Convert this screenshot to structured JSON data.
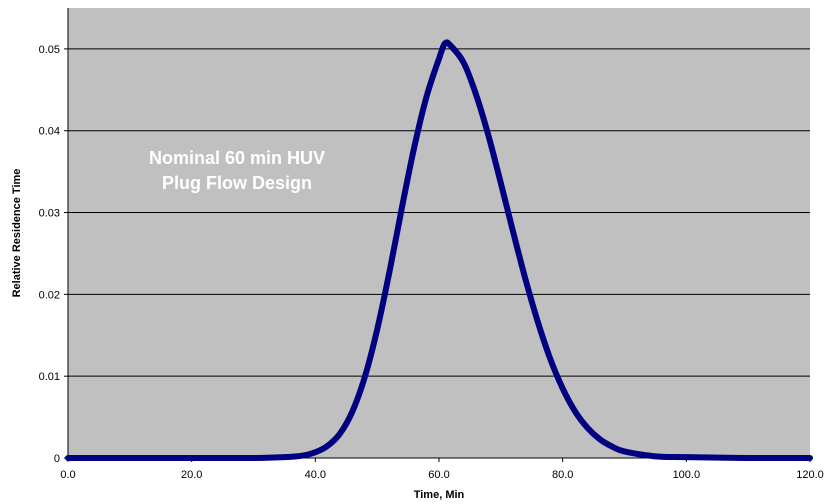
{
  "chart_data": {
    "type": "line",
    "title": "",
    "xlabel": "Time, Min",
    "ylabel": "Relative Residence Time",
    "xlim": [
      0,
      120
    ],
    "ylim": [
      0,
      0.055
    ],
    "xticks": [
      "0.0",
      "20.0",
      "40.0",
      "60.0",
      "80.0",
      "100.0",
      "120.0"
    ],
    "yticks": [
      "0",
      "0.01",
      "0.02",
      "0.03",
      "0.04",
      "0.05"
    ],
    "grid": "horizontal",
    "legend": "none",
    "annotation": [
      "Nominal 60 min HUV",
      "Plug Flow Design"
    ],
    "colors": {
      "plot_bg": "#c0c0c0",
      "line": "#000080",
      "grid": "#000000",
      "annotation": "#ffffff"
    },
    "series": [
      {
        "x": [
          0,
          10,
          20,
          30,
          35,
          38,
          40,
          42,
          44,
          46,
          48,
          50,
          52,
          54,
          56,
          58,
          60,
          61,
          62,
          64,
          66,
          68,
          70,
          72,
          74,
          76,
          78,
          80,
          82,
          84,
          86,
          88,
          90,
          95,
          100,
          110,
          120
        ],
        "y": [
          0,
          0,
          0,
          0,
          0.0001,
          0.0003,
          0.0007,
          0.0015,
          0.003,
          0.0057,
          0.0099,
          0.0157,
          0.0228,
          0.0306,
          0.038,
          0.0442,
          0.0488,
          0.0507,
          0.0503,
          0.0483,
          0.0444,
          0.0394,
          0.0336,
          0.0276,
          0.0218,
          0.0166,
          0.0121,
          0.0085,
          0.0057,
          0.0037,
          0.0023,
          0.0014,
          0.0008,
          0.0002,
          0.0001,
          0,
          0
        ]
      }
    ]
  }
}
